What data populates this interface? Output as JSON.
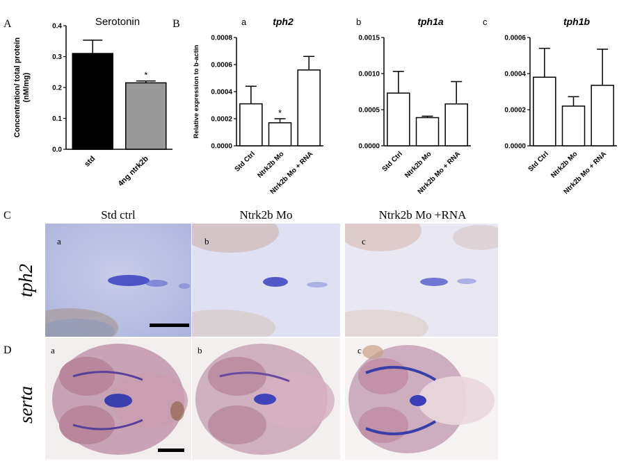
{
  "panels": {
    "A": "A",
    "B": "B",
    "C": "C",
    "D": "D"
  },
  "colors": {
    "std": "#000000",
    "ntrk2b": "#999999",
    "hollow": "#ffffff",
    "stain_blue": "#3a3fc0",
    "tissue_purple": "#b98fb3"
  },
  "chart_data": [
    {
      "type": "bar",
      "title": "Serotonin",
      "ylabel": "Concentration/ total protein (nM/mg)",
      "categories": [
        "std",
        "4ng ntrk2b"
      ],
      "values": [
        0.31,
        0.215
      ],
      "errors": [
        0.043,
        0.006
      ],
      "significance": [
        "",
        "*"
      ],
      "ylim": [
        0,
        0.4
      ],
      "yticks": [
        "0.0",
        "0.1",
        "0.2",
        "0.3",
        "0.4"
      ],
      "ytick_values": [
        0,
        0.1,
        0.2,
        0.3,
        0.4
      ],
      "bar_colors": [
        "#000000",
        "#999999"
      ]
    },
    {
      "type": "bar",
      "sub": "a",
      "title": "tph2",
      "ylabel": "Relative expression to b-actin",
      "categories": [
        "Std Ctrl",
        "Ntrk2b Mo",
        "Ntrk2b Mo + RNA"
      ],
      "values": [
        0.00031,
        0.00017,
        0.00056
      ],
      "errors": [
        0.00013,
        3e-05,
        0.0001
      ],
      "significance": [
        "",
        "*",
        ""
      ],
      "ylim": [
        0,
        0.0008
      ],
      "yticks": [
        "0.0000",
        "0.0002",
        "0.0004",
        "0.0006",
        "0.0008"
      ],
      "ytick_values": [
        0,
        0.0002,
        0.0004,
        0.0006,
        0.0008
      ]
    },
    {
      "type": "bar",
      "sub": "b",
      "title": "tph1a",
      "ylabel": "",
      "categories": [
        "Std Ctrl",
        "Ntrk2b Mo",
        "Ntrk2b Mo + RNA"
      ],
      "values": [
        0.00073,
        0.00039,
        0.00058
      ],
      "errors": [
        0.0003,
        2e-05,
        0.00031
      ],
      "significance": [
        "",
        "",
        ""
      ],
      "ylim": [
        0,
        0.0015
      ],
      "yticks": [
        "0.0000",
        "0.0005",
        "0.0010",
        "0.0015"
      ],
      "ytick_values": [
        0,
        0.0005,
        0.001,
        0.0015
      ]
    },
    {
      "type": "bar",
      "sub": "c",
      "title": "tph1b",
      "ylabel": "",
      "categories": [
        "Std Ctrl",
        "Ntrk2b Mo",
        "Ntrk2b Mo + RNA"
      ],
      "values": [
        0.00038,
        0.00022,
        0.000335
      ],
      "errors": [
        0.00016,
        5.2e-05,
        0.0002
      ],
      "significance": [
        "",
        "",
        ""
      ],
      "ylim": [
        0,
        0.0006
      ],
      "yticks": [
        "0.0000",
        "0.0002",
        "0.0004",
        "0.0006"
      ],
      "ytick_values": [
        0,
        0.0002,
        0.0004,
        0.0006
      ]
    }
  ],
  "images": {
    "columns": [
      "Std ctrl",
      "Ntrk2b Mo",
      "Ntrk2b Mo +RNA"
    ],
    "rows": [
      "tph2",
      "serta"
    ],
    "sub_letters": [
      "a",
      "b",
      "c"
    ]
  }
}
